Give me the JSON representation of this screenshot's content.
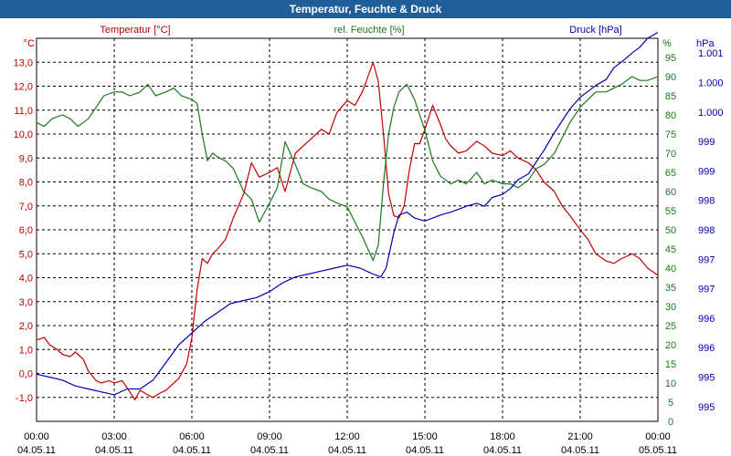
{
  "window": {
    "title": "Temperatur, Feuchte & Druck"
  },
  "colors": {
    "temperature": "#c00000",
    "humidity": "#1a7a1a",
    "pressure": "#0000b0",
    "titlebar": "#1f5e98"
  },
  "chart_data": {
    "type": "line",
    "title": "Temperatur, Feuchte & Druck",
    "grid": true,
    "x_ticks": [
      {
        "time": "00:00",
        "date": "04.05.11"
      },
      {
        "time": "03:00",
        "date": "04.05.11"
      },
      {
        "time": "06:00",
        "date": "04.05.11"
      },
      {
        "time": "09:00",
        "date": "04.05.11"
      },
      {
        "time": "12:00",
        "date": "04.05.11"
      },
      {
        "time": "15:00",
        "date": "04.05.11"
      },
      {
        "time": "18:00",
        "date": "04.05.11"
      },
      {
        "time": "21:00",
        "date": "04.05.11"
      },
      {
        "time": "00:00",
        "date": "05.05.11"
      }
    ],
    "x_range_hours": [
      0,
      24
    ],
    "axes": {
      "temperature": {
        "name": "Temperatur [°C]",
        "unit": "°C",
        "range": [
          -2,
          14
        ],
        "tick_labels": [
          "-1,0",
          "0,0",
          "1,0",
          "2,0",
          "3,0",
          "4,0",
          "5,0",
          "6,0",
          "7,0",
          "8,0",
          "9,0",
          "10,0",
          "11,0",
          "12,0",
          "13,0"
        ]
      },
      "humidity": {
        "name": "rel. Feuchte [%]",
        "unit": "%",
        "range": [
          0,
          100
        ],
        "tick_labels": [
          "0",
          "5",
          "10",
          "15",
          "20",
          "25",
          "30",
          "35",
          "40",
          "45",
          "50",
          "55",
          "60",
          "65",
          "70",
          "75",
          "80",
          "85",
          "90",
          "95"
        ]
      },
      "pressure": {
        "name": "Druck [hPa]",
        "unit": "hPa",
        "tick_labels": [
          "995",
          "995",
          "996",
          "996",
          "997",
          "997",
          "998",
          "998",
          "999",
          "999",
          "1.000",
          "1.000",
          "1.001"
        ]
      }
    },
    "series": [
      {
        "name": "Temperatur [°C]",
        "axis": "temperature",
        "x": [
          0,
          0.3,
          0.5,
          0.8,
          1.0,
          1.3,
          1.5,
          1.8,
          2.0,
          2.3,
          2.5,
          2.8,
          3.0,
          3.3,
          3.5,
          3.8,
          4.0,
          4.3,
          4.5,
          4.8,
          5.0,
          5.3,
          5.5,
          5.8,
          6.0,
          6.2,
          6.4,
          6.6,
          6.8,
          7.0,
          7.3,
          7.6,
          8.0,
          8.3,
          8.6,
          9.0,
          9.3,
          9.6,
          10.0,
          10.3,
          10.6,
          11.0,
          11.3,
          11.6,
          12.0,
          12.3,
          12.6,
          13.0,
          13.2,
          13.4,
          13.6,
          13.8,
          14.0,
          14.2,
          14.4,
          14.6,
          14.8,
          15.0,
          15.3,
          15.6,
          15.8,
          16.0,
          16.3,
          16.6,
          17.0,
          17.3,
          17.6,
          18.0,
          18.3,
          18.6,
          19.0,
          19.3,
          19.6,
          20.0,
          20.3,
          20.6,
          21.0,
          21.3,
          21.6,
          22.0,
          22.3,
          22.6,
          23.0,
          23.3,
          23.6,
          24.0
        ],
        "y": [
          1.4,
          1.5,
          1.2,
          1.0,
          0.8,
          0.7,
          0.9,
          0.6,
          0.1,
          -0.3,
          -0.4,
          -0.3,
          -0.4,
          -0.3,
          -0.6,
          -1.1,
          -0.7,
          -0.9,
          -1.0,
          -0.8,
          -0.7,
          -0.4,
          -0.2,
          0.4,
          1.5,
          3.5,
          4.8,
          4.6,
          5.0,
          5.2,
          5.6,
          6.5,
          7.5,
          8.8,
          8.2,
          8.4,
          8.6,
          7.6,
          9.2,
          9.5,
          9.8,
          10.2,
          10.0,
          10.9,
          11.4,
          11.2,
          11.8,
          13.0,
          12.2,
          10.0,
          7.5,
          6.6,
          6.5,
          7.0,
          8.5,
          9.6,
          9.6,
          10.2,
          11.2,
          10.4,
          9.8,
          9.5,
          9.2,
          9.3,
          9.7,
          9.5,
          9.2,
          9.1,
          9.3,
          9.0,
          8.8,
          8.5,
          8.0,
          7.6,
          7.0,
          6.6,
          6.0,
          5.6,
          5.0,
          4.7,
          4.6,
          4.8,
          5.0,
          4.8,
          4.4,
          4.1
        ]
      },
      {
        "name": "rel. Feuchte [%]",
        "axis": "humidity",
        "x": [
          0,
          0.3,
          0.6,
          1.0,
          1.3,
          1.6,
          2.0,
          2.3,
          2.6,
          3.0,
          3.3,
          3.6,
          4.0,
          4.3,
          4.6,
          5.0,
          5.3,
          5.6,
          6.0,
          6.2,
          6.4,
          6.6,
          6.8,
          7.0,
          7.3,
          7.6,
          8.0,
          8.3,
          8.6,
          9.0,
          9.3,
          9.6,
          10.0,
          10.3,
          10.6,
          11.0,
          11.3,
          11.6,
          12.0,
          12.3,
          12.6,
          13.0,
          13.2,
          13.4,
          13.6,
          13.8,
          14.0,
          14.3,
          14.6,
          15.0,
          15.3,
          15.6,
          16.0,
          16.3,
          16.6,
          17.0,
          17.3,
          17.6,
          18.0,
          18.3,
          18.6,
          19.0,
          19.3,
          19.6,
          20.0,
          20.3,
          20.6,
          21.0,
          21.3,
          21.6,
          22.0,
          22.3,
          22.6,
          23.0,
          23.3,
          23.6,
          24.0
        ],
        "y": [
          78,
          77,
          79,
          80,
          79,
          77,
          79,
          82,
          85,
          86,
          86,
          85,
          86,
          88,
          85,
          86,
          87,
          85,
          84,
          83,
          75,
          68,
          70,
          69,
          68,
          66,
          60,
          58,
          52,
          57,
          61,
          73,
          67,
          62,
          61,
          60,
          58,
          57,
          56,
          52,
          48,
          42,
          46,
          62,
          75,
          82,
          86,
          88,
          84,
          76,
          68,
          64,
          62,
          63,
          62,
          65,
          62,
          63,
          62,
          62,
          61,
          63,
          66,
          67,
          70,
          74,
          78,
          82,
          84,
          86,
          86,
          87,
          88,
          90,
          89,
          89,
          90
        ]
      },
      {
        "name": "Druck [hPa]",
        "axis": "pressure",
        "x": [
          0,
          0.5,
          1.0,
          1.5,
          2.0,
          2.5,
          3.0,
          3.5,
          4.0,
          4.5,
          5.0,
          5.5,
          6.0,
          6.5,
          7.0,
          7.5,
          8.0,
          8.5,
          9.0,
          9.5,
          10.0,
          10.5,
          11.0,
          11.5,
          12.0,
          12.5,
          13.0,
          13.3,
          13.5,
          13.8,
          14.0,
          14.3,
          14.6,
          15.0,
          15.3,
          15.6,
          16.0,
          16.3,
          16.6,
          17.0,
          17.3,
          17.6,
          18.0,
          18.3,
          18.6,
          19.0,
          19.3,
          19.6,
          20.0,
          20.3,
          20.6,
          21.0,
          21.3,
          21.6,
          22.0,
          22.3,
          22.6,
          23.0,
          23.3,
          23.6,
          24.0
        ],
        "y": [
          995.3,
          995.25,
          995.2,
          995.1,
          995.05,
          995.0,
          994.95,
          995.05,
          995.05,
          995.2,
          995.5,
          995.8,
          996.0,
          996.2,
          996.35,
          996.5,
          996.55,
          996.6,
          996.7,
          996.85,
          996.95,
          997.0,
          997.05,
          997.1,
          997.15,
          997.1,
          997.0,
          996.95,
          997.1,
          997.7,
          998.0,
          998.05,
          997.95,
          997.9,
          997.95,
          998.0,
          998.05,
          998.1,
          998.15,
          998.2,
          998.15,
          998.3,
          998.35,
          998.45,
          998.6,
          998.7,
          998.9,
          999.1,
          999.4,
          999.6,
          999.8,
          1000.0,
          1000.1,
          1000.2,
          1000.3,
          1000.5,
          1000.6,
          1000.75,
          1000.85,
          1001.0,
          1001.1
        ]
      }
    ]
  }
}
